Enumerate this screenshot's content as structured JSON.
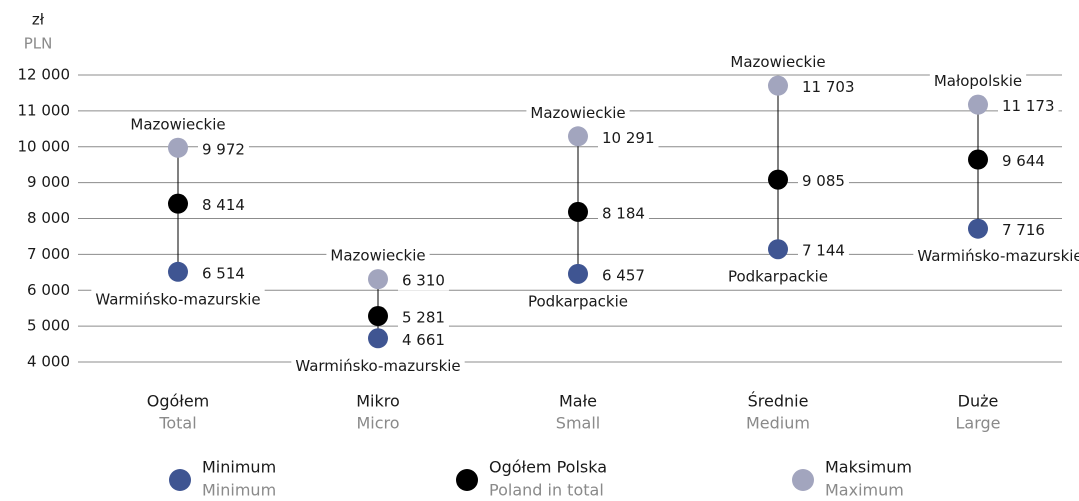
{
  "chart_data": {
    "type": "dotplot",
    "unit": "zł",
    "unit_en": "PLN",
    "categories": [
      "Ogółem",
      "Mikro",
      "Małe",
      "Średnie",
      "Duże"
    ],
    "categories_en": [
      "Total",
      "Micro",
      "Small",
      "Medium",
      "Large"
    ],
    "ylim": [
      4000,
      12000
    ],
    "yticks": [
      {
        "value": 4000,
        "label": "4 000"
      },
      {
        "value": 5000,
        "label": "5 000"
      },
      {
        "value": 6000,
        "label": "6 000"
      },
      {
        "value": 7000,
        "label": "7 000"
      },
      {
        "value": 8000,
        "label": "8 000"
      },
      {
        "value": 9000,
        "label": "9 000"
      },
      {
        "value": 10000,
        "label": "10 000"
      },
      {
        "value": 11000,
        "label": "11 000"
      },
      {
        "value": 12000,
        "label": "12 000"
      }
    ],
    "grid": true,
    "series": [
      {
        "name": "Minimum",
        "name_en": "Minimum",
        "color": "#3f5592",
        "values": [
          6514,
          4661,
          6457,
          7144,
          7716
        ],
        "value_labels": [
          "6 514",
          "4 661",
          "6 457",
          "7 144",
          "7 716"
        ],
        "regions": [
          "Warmińsko-mazurskie",
          "Warmińsko-mazurskie",
          "Podkarpackie",
          "Podkarpackie",
          "Warmińsko-mazurskie"
        ]
      },
      {
        "name": "Ogółem Polska",
        "name_en": "Poland in total",
        "color": "#000000",
        "values": [
          8414,
          5281,
          8184,
          9085,
          9644
        ],
        "value_labels": [
          "8 414",
          "5 281",
          "8 184",
          "9 085",
          "9 644"
        ]
      },
      {
        "name": "Maksimum",
        "name_en": "Maximum",
        "color": "#a2a5be",
        "values": [
          9972,
          6310,
          10291,
          11703,
          11173
        ],
        "value_labels": [
          "9 972",
          "6 310",
          "10 291",
          "11 703",
          "11 173"
        ],
        "regions": [
          "Mazowieckie",
          "Mazowieckie",
          "Mazowieckie",
          "Mazowieckie",
          "Małopolskie"
        ]
      }
    ]
  }
}
